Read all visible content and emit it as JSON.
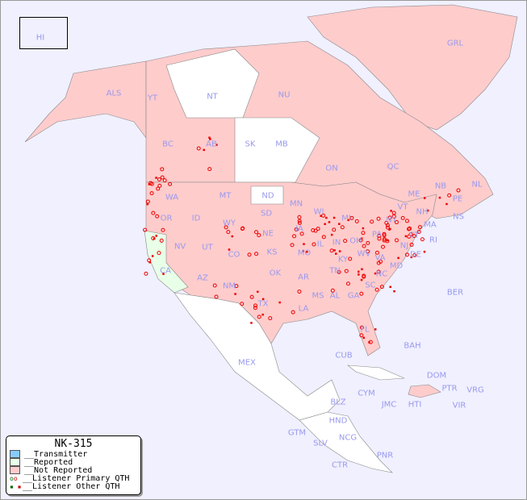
{
  "title": "NK-315",
  "colors": {
    "ocean": "#f0f0ff",
    "transmitter": "#88ccff",
    "reported": "#e8ffe8",
    "not_reported": "#ffcccc",
    "unlisted": "#ffffff",
    "dot": "#ee0000",
    "label": "#9999ee"
  },
  "legend": [
    {
      "label": "__Transmitter",
      "swatch": "#88ccff"
    },
    {
      "label": "__Reported",
      "swatch": "#e8ffe8"
    },
    {
      "label": "__Not Reported",
      "swatch": "#ffcccc"
    },
    {
      "label": "__Listener Primary QTH",
      "symbol": "circle"
    },
    {
      "label": "__Listener Other QTH",
      "symbol": "square"
    }
  ],
  "regions": [
    "HI",
    "ALS",
    "YT",
    "NT",
    "NU",
    "GRL",
    "BC",
    "AB",
    "SK",
    "MB",
    "ON",
    "QC",
    "NL",
    "NS",
    "NB",
    "PE",
    "WA",
    "OR",
    "ID",
    "MT",
    "ND",
    "MN",
    "WI",
    "MI",
    "SD",
    "WY",
    "NE",
    "IA",
    "IL",
    "IN",
    "OH",
    "PA",
    "NY",
    "VT",
    "NH",
    "ME",
    "MA",
    "CT",
    "RI",
    "NJ",
    "DE",
    "MD",
    "WV",
    "VA",
    "KY",
    "NV",
    "UT",
    "CO",
    "KS",
    "MO",
    "CA",
    "AZ",
    "NM",
    "OK",
    "AR",
    "TN",
    "NC",
    "SC",
    "GA",
    "AL",
    "MS",
    "LA",
    "TX",
    "FL",
    "MEX",
    "CUB",
    "BAH",
    "BER",
    "DOM",
    "PTR",
    "VRG",
    "CYM",
    "JMC",
    "HTI",
    "VIR",
    "BLZ",
    "HND",
    "GTM",
    "SLV",
    "NCG",
    "CTR",
    "PNR"
  ]
}
